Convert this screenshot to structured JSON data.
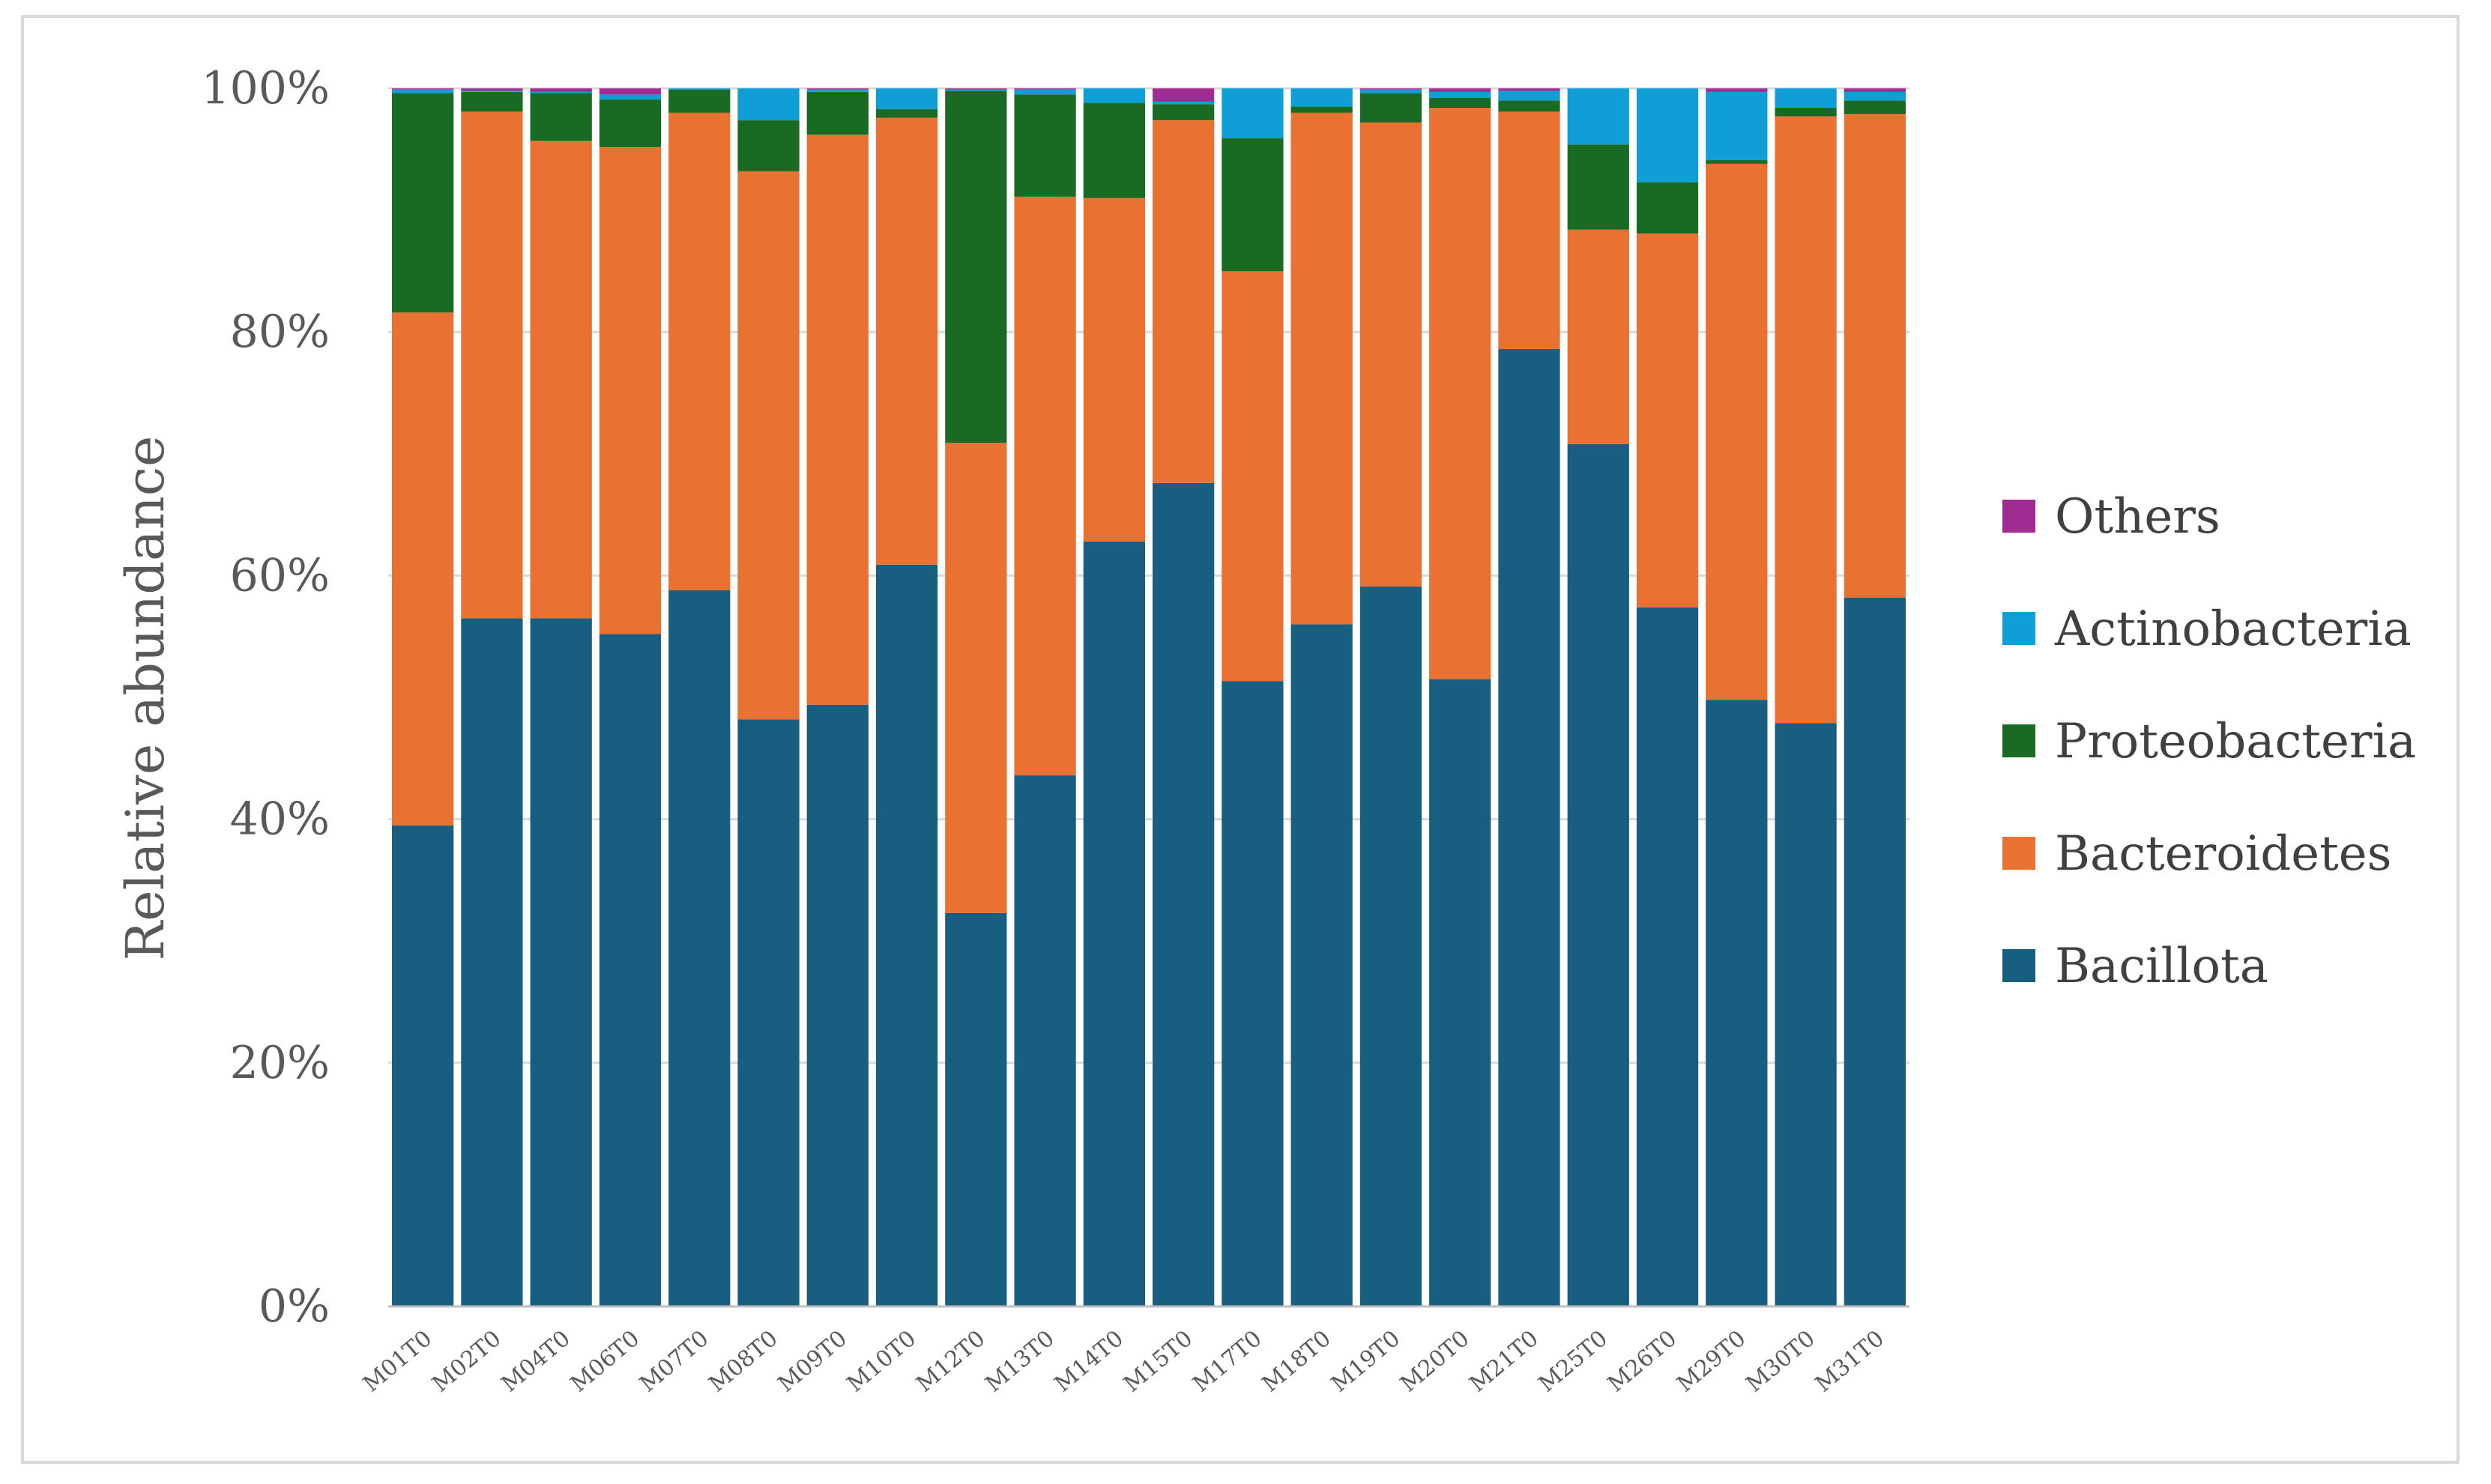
{
  "chart_data": {
    "type": "bar",
    "stacked": true,
    "title": "",
    "xlabel": "",
    "ylabel": "Relative abundance",
    "ylim": [
      0,
      100
    ],
    "y_ticks": [
      "0%",
      "20%",
      "40%",
      "60%",
      "80%",
      "100%"
    ],
    "legend_position": "right",
    "categories": [
      "M01T0",
      "M02T0",
      "M04T0",
      "M06T0",
      "M07T0",
      "M08T0",
      "M09T0",
      "M10T0",
      "M12T0",
      "M13T0",
      "M14T0",
      "M15T0",
      "M17T0",
      "M18T0",
      "M19T0",
      "M20T0",
      "M21T0",
      "M25T0",
      "M26T0",
      "M29T0",
      "M30T0",
      "M31T0"
    ],
    "series": [
      {
        "name": "Bacillota",
        "color": "#175e80",
        "values": [
          39.5,
          56.5,
          56.5,
          55.2,
          58.8,
          48.2,
          49.4,
          60.9,
          32.3,
          43.6,
          62.8,
          67.6,
          51.6,
          56.0,
          59.1,
          51.5,
          78.6,
          70.8,
          57.4,
          49.8,
          47.9,
          58.2
        ]
      },
      {
        "name": "Bacteroidetes",
        "color": "#e97132",
        "values": [
          42.1,
          41.6,
          39.2,
          40.0,
          39.2,
          45.0,
          46.8,
          36.7,
          38.6,
          47.5,
          28.2,
          29.8,
          33.8,
          42.0,
          38.1,
          46.9,
          19.5,
          17.6,
          30.7,
          44.0,
          49.8,
          39.7
        ]
      },
      {
        "name": "Proteobacteria",
        "color": "#196b24",
        "values": [
          18.0,
          1.6,
          3.9,
          3.9,
          1.9,
          4.2,
          3.5,
          0.7,
          28.9,
          8.4,
          7.8,
          1.3,
          11.0,
          0.5,
          2.4,
          0.8,
          0.9,
          7.0,
          4.2,
          0.3,
          0.7,
          1.1
        ]
      },
      {
        "name": "Actinobacteria",
        "color": "#0f9ed5",
        "values": [
          0.3,
          0.1,
          0.1,
          0.4,
          0.1,
          2.6,
          0.2,
          1.7,
          0.1,
          0.4,
          1.2,
          0.2,
          4.1,
          1.5,
          0.3,
          0.5,
          0.8,
          4.6,
          7.7,
          5.6,
          1.6,
          0.7
        ]
      },
      {
        "name": "Others",
        "color": "#a02b93",
        "values": [
          0.1,
          0.2,
          0.3,
          0.5,
          0.0,
          0.0,
          0.1,
          0.0,
          0.1,
          0.1,
          0.0,
          1.1,
          0.0,
          0.0,
          0.1,
          0.3,
          0.2,
          0.0,
          0.0,
          0.3,
          0.0,
          0.3
        ]
      }
    ],
    "legend_order": [
      "Others",
      "Actinobacteria",
      "Proteobacteria",
      "Bacteroidetes",
      "Bacillota"
    ]
  }
}
